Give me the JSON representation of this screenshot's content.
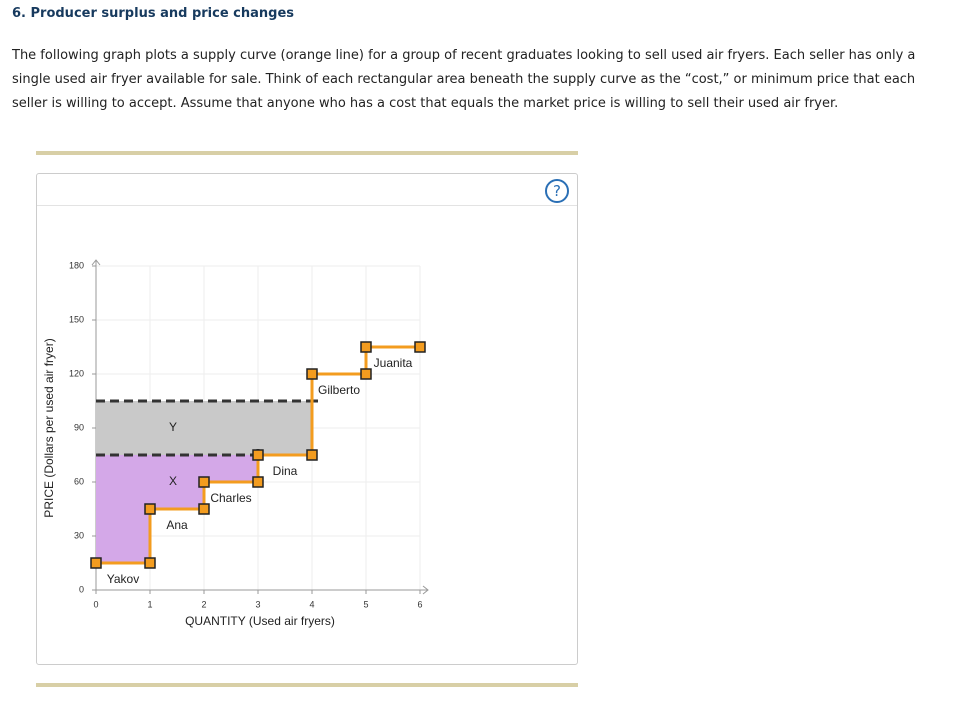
{
  "header": {
    "title": "6. Producer surplus and price changes"
  },
  "paragraph": "The following graph plots a supply curve (orange line) for a group of recent graduates looking to sell used air fryers. Each seller has only a single used air fryer available for sale. Think of each rectangular area beneath the supply curve as the “cost,” or minimum price that each seller is willing to accept. Assume that anyone who has a cost that equals the market price is willing to sell their used air fryer.",
  "help": "?",
  "chart_data": {
    "type": "supply",
    "x_label": "QUANTITY (Used air fryers)",
    "y_label": "PRICE (Dollars per used air fryer)",
    "xlim": [
      0,
      6
    ],
    "xticks": [
      0,
      1,
      2,
      3,
      4,
      5,
      6
    ],
    "ylim": [
      0,
      180
    ],
    "yticks": [
      0,
      30,
      60,
      90,
      120,
      150,
      180
    ],
    "grid": true,
    "color": "#f39c1f",
    "labels": [
      "Yakov",
      "Ana",
      "Charles",
      "Dina",
      "Gilberto",
      "Juanita"
    ],
    "x": [
      1,
      2,
      3,
      4,
      5,
      6
    ],
    "values": [
      15,
      45,
      60,
      75,
      120,
      135
    ],
    "price_lines": [
      {
        "value": 75,
        "quantity": 3
      },
      {
        "value": 105,
        "quantity": 4
      }
    ],
    "areas": [
      {
        "label": "X",
        "color": "#d4a8e8"
      },
      {
        "label": "Y",
        "color": "#c9c9c9"
      }
    ]
  }
}
